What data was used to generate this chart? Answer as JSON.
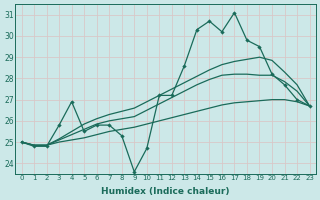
{
  "xlabel": "Humidex (Indice chaleur)",
  "background_color": "#cce8e8",
  "grid_color": "#e8d0d0",
  "line_color": "#1a6b5a",
  "xlim": [
    -0.5,
    23.5
  ],
  "ylim": [
    23.5,
    31.5
  ],
  "yticks": [
    24,
    25,
    26,
    27,
    28,
    29,
    30,
    31
  ],
  "xticks": [
    0,
    1,
    2,
    3,
    4,
    5,
    6,
    7,
    8,
    9,
    10,
    11,
    12,
    13,
    14,
    15,
    16,
    17,
    18,
    19,
    20,
    21,
    22,
    23
  ],
  "series_jagged": [
    25.0,
    24.8,
    24.8,
    25.8,
    26.9,
    25.5,
    25.8,
    25.8,
    25.3,
    23.6,
    24.7,
    27.2,
    27.2,
    28.6,
    30.3,
    30.7,
    30.2,
    31.1,
    29.8,
    29.5,
    28.2,
    27.7,
    27.0,
    26.7
  ],
  "series_smooth1": [
    25.0,
    24.85,
    24.85,
    25.0,
    25.1,
    25.2,
    25.35,
    25.5,
    25.6,
    25.7,
    25.85,
    26.0,
    26.15,
    26.3,
    26.45,
    26.6,
    26.75,
    26.85,
    26.9,
    26.95,
    27.0,
    27.0,
    26.9,
    26.7
  ],
  "series_smooth2": [
    25.0,
    24.85,
    24.85,
    25.1,
    25.35,
    25.6,
    25.85,
    26.0,
    26.1,
    26.2,
    26.5,
    26.8,
    27.1,
    27.4,
    27.7,
    27.95,
    28.15,
    28.2,
    28.2,
    28.15,
    28.15,
    27.85,
    27.4,
    26.7
  ],
  "series_smooth3": [
    25.0,
    24.85,
    24.85,
    25.15,
    25.5,
    25.85,
    26.1,
    26.3,
    26.45,
    26.6,
    26.9,
    27.2,
    27.5,
    27.8,
    28.1,
    28.4,
    28.65,
    28.8,
    28.9,
    29.0,
    28.85,
    28.3,
    27.7,
    26.7
  ]
}
